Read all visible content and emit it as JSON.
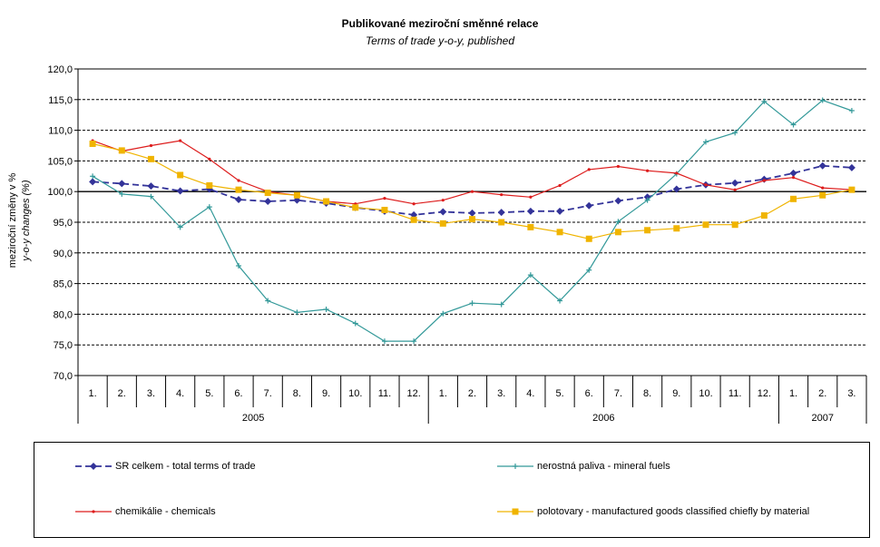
{
  "chart_data": {
    "type": "line",
    "title": "Publikované meziroční směnné relace",
    "subtitle": "Terms of trade y-o-y, published",
    "ylabel_line1": "meziroční změny v %",
    "ylabel_line2": "y-o-y changes (%)",
    "ylim": [
      70,
      120
    ],
    "yticks": [
      "70,0",
      "75,0",
      "80,0",
      "85,0",
      "90,0",
      "95,0",
      "100,0",
      "105,0",
      "110,0",
      "115,0",
      "120,0"
    ],
    "categories": [
      "1.",
      "2.",
      "3.",
      "4.",
      "5.",
      "6.",
      "7.",
      "8.",
      "9.",
      "10.",
      "11.",
      "12.",
      "1.",
      "2.",
      "3.",
      "4.",
      "5.",
      "6.",
      "7.",
      "8.",
      "9.",
      "10.",
      "11.",
      "12.",
      "1.",
      "2.",
      "3."
    ],
    "years": [
      {
        "label": "2005",
        "start": 0,
        "count": 12
      },
      {
        "label": "2006",
        "start": 12,
        "count": 12
      },
      {
        "label": "2007",
        "start": 24,
        "count": 3
      }
    ],
    "grid": true,
    "legend_position": "bottom",
    "series": [
      {
        "name": "SR celkem - total terms of trade",
        "color": "#333399",
        "marker": "diamond",
        "dash": true,
        "values": [
          101.6,
          101.3,
          100.9,
          100.1,
          100.4,
          98.7,
          98.4,
          98.6,
          98.1,
          97.4,
          96.8,
          96.2,
          96.7,
          96.5,
          96.6,
          96.8,
          96.8,
          97.7,
          98.5,
          99.1,
          100.4,
          101.1,
          101.4,
          102.0,
          103.0,
          104.2,
          103.9
        ]
      },
      {
        "name": "nerostná paliva - mineral fuels",
        "color": "#339999",
        "marker": "plus",
        "dash": false,
        "values": [
          102.5,
          99.6,
          99.2,
          94.2,
          97.5,
          87.9,
          82.2,
          80.3,
          80.8,
          78.5,
          75.6,
          75.6,
          80.1,
          81.8,
          81.6,
          86.4,
          82.2,
          87.2,
          95.1,
          98.6,
          102.9,
          108.1,
          109.6,
          114.7,
          110.9,
          114.9,
          113.2
        ]
      },
      {
        "name": "chemikálie - chemicals",
        "color": "#dd1c1c",
        "marker": "dot",
        "dash": false,
        "values": [
          108.3,
          106.6,
          107.5,
          108.3,
          105.3,
          101.8,
          100.0,
          99.4,
          98.4,
          98.0,
          98.9,
          98.0,
          98.6,
          100.0,
          99.5,
          99.1,
          101.0,
          103.6,
          104.1,
          103.4,
          103.0,
          101.1,
          100.3,
          101.8,
          102.3,
          100.6,
          100.3
        ]
      },
      {
        "name": "polotovary - manufactured goods classified chiefly by material",
        "color": "#f0b400",
        "marker": "square",
        "dash": false,
        "values": [
          107.8,
          106.7,
          105.3,
          102.7,
          101.0,
          100.3,
          99.8,
          99.4,
          98.4,
          97.4,
          97.0,
          95.4,
          94.8,
          95.5,
          95.0,
          94.2,
          93.4,
          92.3,
          93.4,
          93.7,
          94.0,
          94.6,
          94.6,
          96.1,
          98.8,
          99.4,
          100.3
        ]
      }
    ]
  }
}
